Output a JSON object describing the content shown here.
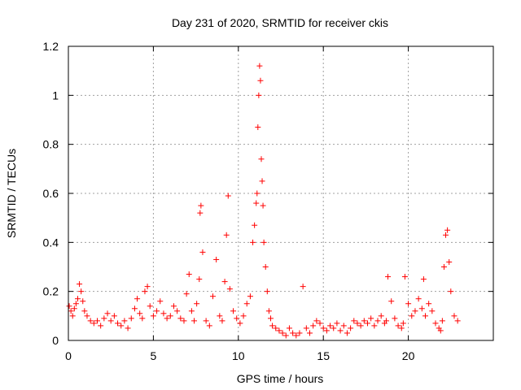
{
  "chart_data": {
    "type": "scatter",
    "title": "Day 231 of 2020, SRMTID for receiver ckis",
    "xlabel": "GPS time / hours",
    "ylabel": "SRMTID / TECUs",
    "xlim": [
      0,
      25
    ],
    "ylim": [
      0,
      1.2
    ],
    "xticks": [
      0,
      5,
      10,
      15,
      20
    ],
    "xtick_labels": [
      "0",
      "5",
      "10",
      "15",
      "20"
    ],
    "yticks": [
      0,
      0.2,
      0.4,
      0.6,
      0.8,
      1,
      1.2
    ],
    "ytick_labels": [
      "0",
      "0.2",
      "0.4",
      "0.6",
      "0.8",
      "1",
      "1.2"
    ],
    "grid": true,
    "marker": "+",
    "marker_color": "#ff0000",
    "series": [
      {
        "name": "SRMTID",
        "x": [
          0.05,
          0.15,
          0.25,
          0.35,
          0.45,
          0.55,
          0.65,
          0.75,
          0.85,
          0.95,
          1.1,
          1.3,
          1.5,
          1.7,
          1.9,
          2.1,
          2.3,
          2.5,
          2.7,
          2.9,
          3.1,
          3.3,
          3.5,
          3.7,
          3.9,
          4.05,
          4.2,
          4.35,
          4.5,
          4.65,
          4.8,
          5.0,
          5.2,
          5.4,
          5.6,
          5.8,
          6.0,
          6.2,
          6.4,
          6.6,
          6.8,
          6.95,
          7.1,
          7.25,
          7.4,
          7.55,
          7.7,
          7.75,
          7.8,
          7.9,
          8.1,
          8.3,
          8.5,
          8.7,
          8.9,
          9.05,
          9.2,
          9.3,
          9.4,
          9.5,
          9.7,
          9.9,
          10.1,
          10.3,
          10.5,
          10.7,
          10.85,
          10.95,
          11.05,
          11.1,
          11.15,
          11.2,
          11.25,
          11.3,
          11.35,
          11.4,
          11.45,
          11.5,
          11.6,
          11.7,
          11.8,
          11.9,
          12.0,
          12.2,
          12.4,
          12.6,
          12.8,
          13.0,
          13.2,
          13.4,
          13.6,
          13.8,
          14.0,
          14.2,
          14.4,
          14.6,
          14.8,
          15.0,
          15.2,
          15.4,
          15.6,
          15.8,
          16.0,
          16.2,
          16.4,
          16.6,
          16.8,
          17.0,
          17.2,
          17.4,
          17.6,
          17.8,
          18.0,
          18.2,
          18.4,
          18.6,
          18.7,
          18.8,
          19.0,
          19.2,
          19.4,
          19.6,
          19.7,
          19.8,
          20.0,
          20.2,
          20.4,
          20.6,
          20.8,
          20.9,
          21.0,
          21.2,
          21.4,
          21.6,
          21.8,
          21.9,
          22.0,
          22.1,
          22.2,
          22.3,
          22.4,
          22.5,
          22.7,
          22.9
        ],
        "y": [
          0.14,
          0.12,
          0.1,
          0.13,
          0.15,
          0.17,
          0.23,
          0.2,
          0.16,
          0.12,
          0.1,
          0.08,
          0.07,
          0.08,
          0.06,
          0.09,
          0.11,
          0.08,
          0.1,
          0.07,
          0.06,
          0.08,
          0.05,
          0.09,
          0.13,
          0.17,
          0.11,
          0.09,
          0.2,
          0.22,
          0.14,
          0.1,
          0.12,
          0.16,
          0.11,
          0.09,
          0.1,
          0.14,
          0.12,
          0.09,
          0.08,
          0.19,
          0.27,
          0.12,
          0.08,
          0.15,
          0.25,
          0.52,
          0.55,
          0.36,
          0.08,
          0.06,
          0.18,
          0.33,
          0.1,
          0.08,
          0.24,
          0.43,
          0.59,
          0.21,
          0.12,
          0.09,
          0.07,
          0.1,
          0.15,
          0.18,
          0.4,
          0.47,
          0.56,
          0.6,
          0.87,
          1.0,
          1.12,
          1.06,
          0.74,
          0.65,
          0.55,
          0.4,
          0.3,
          0.2,
          0.12,
          0.09,
          0.06,
          0.05,
          0.04,
          0.03,
          0.02,
          0.05,
          0.03,
          0.02,
          0.03,
          0.22,
          0.05,
          0.03,
          0.06,
          0.08,
          0.07,
          0.05,
          0.04,
          0.06,
          0.05,
          0.07,
          0.04,
          0.06,
          0.03,
          0.05,
          0.08,
          0.07,
          0.06,
          0.08,
          0.07,
          0.09,
          0.06,
          0.08,
          0.1,
          0.07,
          0.08,
          0.26,
          0.16,
          0.09,
          0.06,
          0.05,
          0.07,
          0.26,
          0.15,
          0.1,
          0.12,
          0.17,
          0.13,
          0.25,
          0.1,
          0.15,
          0.12,
          0.07,
          0.05,
          0.04,
          0.08,
          0.3,
          0.43,
          0.45,
          0.32,
          0.2,
          0.1,
          0.08
        ]
      }
    ]
  }
}
